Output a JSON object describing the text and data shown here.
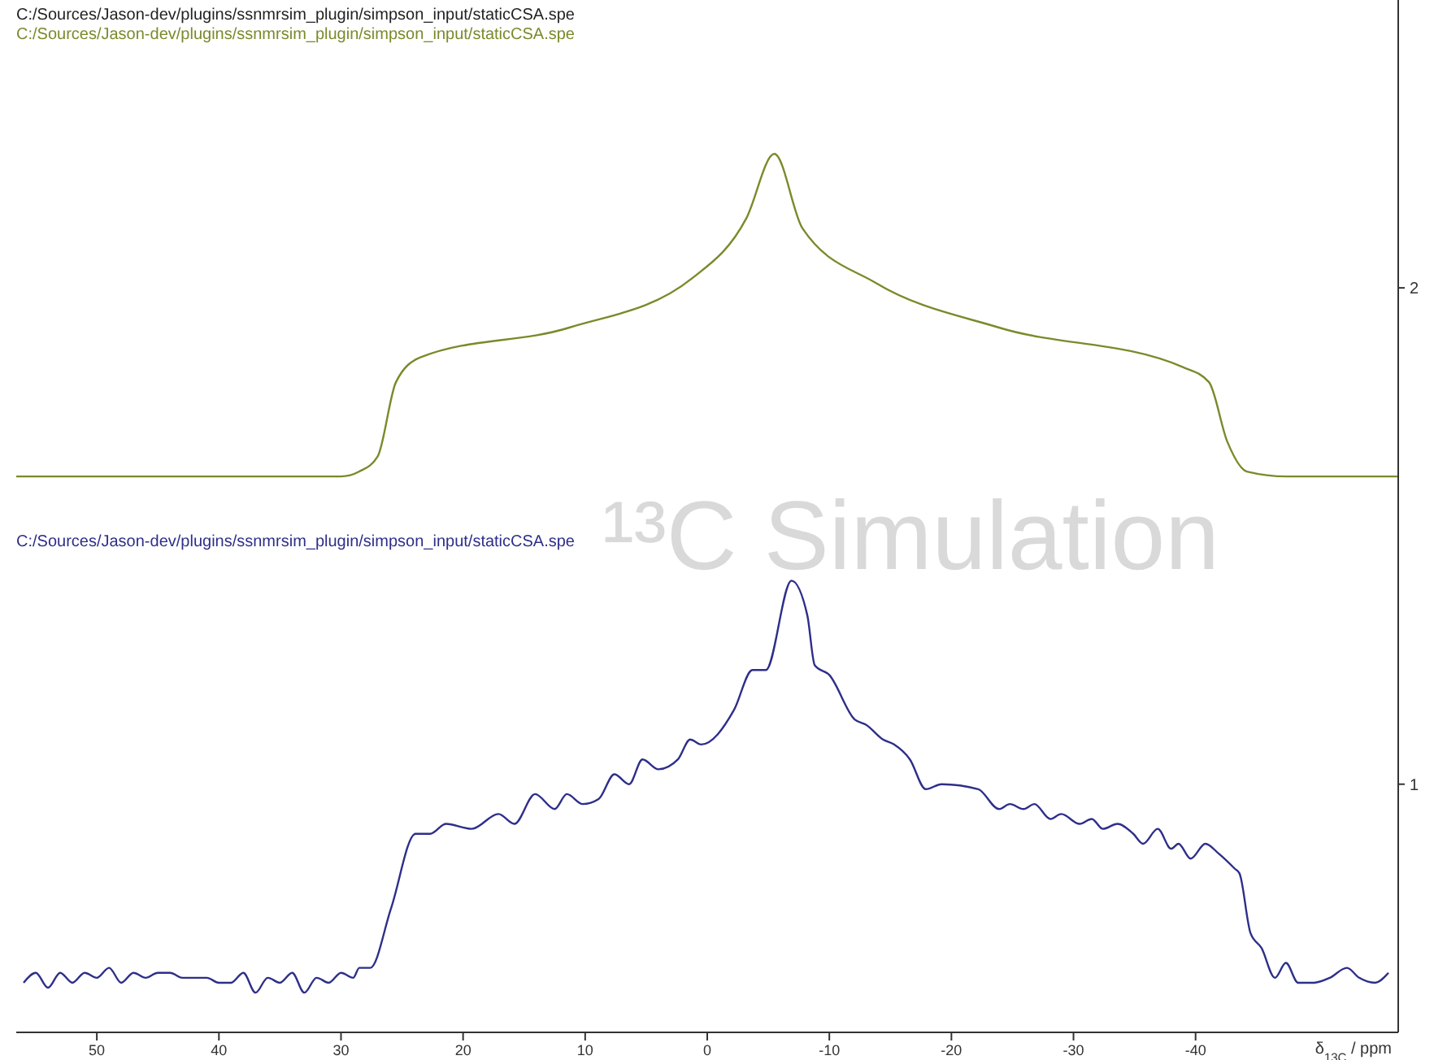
{
  "chart_data": {
    "type": "line",
    "title": "C:/Sources/Jason-dev/plugins/ssnmrsim_plugin/simpson_input/staticCSA.spe",
    "xlabel": "δ$_{13C}$ / ppm",
    "annotations": [
      "¹³C Simulation"
    ],
    "xlim": [
      56.6,
      -56.6
    ],
    "xticks": [
      50,
      40,
      30,
      20,
      10,
      0,
      -10,
      -20,
      -30,
      -40
    ],
    "y2lim": [
      0.5,
      2.58
    ],
    "y2ticks": [
      1,
      2
    ],
    "series": [
      {
        "name": "C:/Sources/Jason-dev/plugins/ssnmrsim_plugin/simpson_input/staticCSA.spe",
        "color": "#7a8a2a",
        "axis": "y2",
        "x": [
          56.6,
          30,
          28.5,
          27.0,
          25.5,
          23.5,
          11.3,
          1.2,
          -3.2,
          -5.5,
          -7.8,
          -13.8,
          -23.9,
          -39.0,
          -41.1,
          -42.6,
          -44.2,
          -47.5,
          -56.6
        ],
        "values": [
          1.62,
          1.62,
          1.63,
          1.66,
          1.81,
          1.86,
          1.92,
          2.02,
          2.14,
          2.27,
          2.12,
          2.01,
          1.92,
          1.84,
          1.81,
          1.69,
          1.63,
          1.62,
          1.62
        ]
      },
      {
        "name": "C:/Sources/Jason-dev/plugins/ssnmrsim_plugin/simpson_input/staticCSA.spe",
        "color": "#2e2e8a",
        "axis": "y2",
        "x": [
          56,
          55,
          54,
          53,
          52,
          51,
          50,
          49,
          48,
          47,
          46,
          45,
          44,
          43,
          42,
          41,
          40,
          39,
          38,
          37,
          36,
          35,
          34,
          33,
          32,
          31,
          30,
          29,
          28.5,
          27.6,
          25.9,
          23.9,
          22.7,
          21.4,
          19.3,
          17.1,
          15.8,
          14.1,
          12.5,
          11.5,
          10.2,
          8.9,
          7.6,
          6.4,
          5.3,
          4.0,
          2.4,
          1.4,
          0.5,
          -2.2,
          -3.7,
          -4.8,
          -6.9,
          -8.2,
          -8.8,
          -10.0,
          -12.1,
          -13.0,
          -14.4,
          -15.3,
          -16.6,
          -17.9,
          -19.2,
          -22.2,
          -23.9,
          -24.8,
          -25.9,
          -26.8,
          -28.1,
          -29.0,
          -30.5,
          -31.5,
          -32.4,
          -33.6,
          -34.9,
          -35.7,
          -36.9,
          -38.0,
          -38.6,
          -39.6,
          -40.8,
          -41.9,
          -43.2,
          -43.6,
          -44.5,
          -45.4,
          -46.5,
          -47.4,
          -48.4,
          -49.7,
          -51.0,
          -52.4,
          -53.4,
          -54.7,
          -55.8
        ],
        "values": [
          0.6,
          0.62,
          0.59,
          0.62,
          0.6,
          0.62,
          0.61,
          0.63,
          0.6,
          0.62,
          0.61,
          0.62,
          0.62,
          0.61,
          0.61,
          0.61,
          0.6,
          0.6,
          0.62,
          0.58,
          0.61,
          0.6,
          0.62,
          0.58,
          0.61,
          0.6,
          0.62,
          0.61,
          0.63,
          0.63,
          0.75,
          0.9,
          0.9,
          0.92,
          0.91,
          0.94,
          0.92,
          0.98,
          0.95,
          0.98,
          0.96,
          0.97,
          1.02,
          1.0,
          1.05,
          1.03,
          1.05,
          1.09,
          1.08,
          1.15,
          1.23,
          1.23,
          1.41,
          1.34,
          1.24,
          1.22,
          1.13,
          1.12,
          1.09,
          1.08,
          1.05,
          0.99,
          1.0,
          0.99,
          0.95,
          0.96,
          0.95,
          0.96,
          0.93,
          0.94,
          0.92,
          0.93,
          0.91,
          0.92,
          0.9,
          0.88,
          0.91,
          0.87,
          0.88,
          0.85,
          0.88,
          0.86,
          0.83,
          0.82,
          0.7,
          0.67,
          0.61,
          0.64,
          0.6,
          0.6,
          0.61,
          0.63,
          0.61,
          0.6,
          0.62
        ]
      }
    ]
  }
}
